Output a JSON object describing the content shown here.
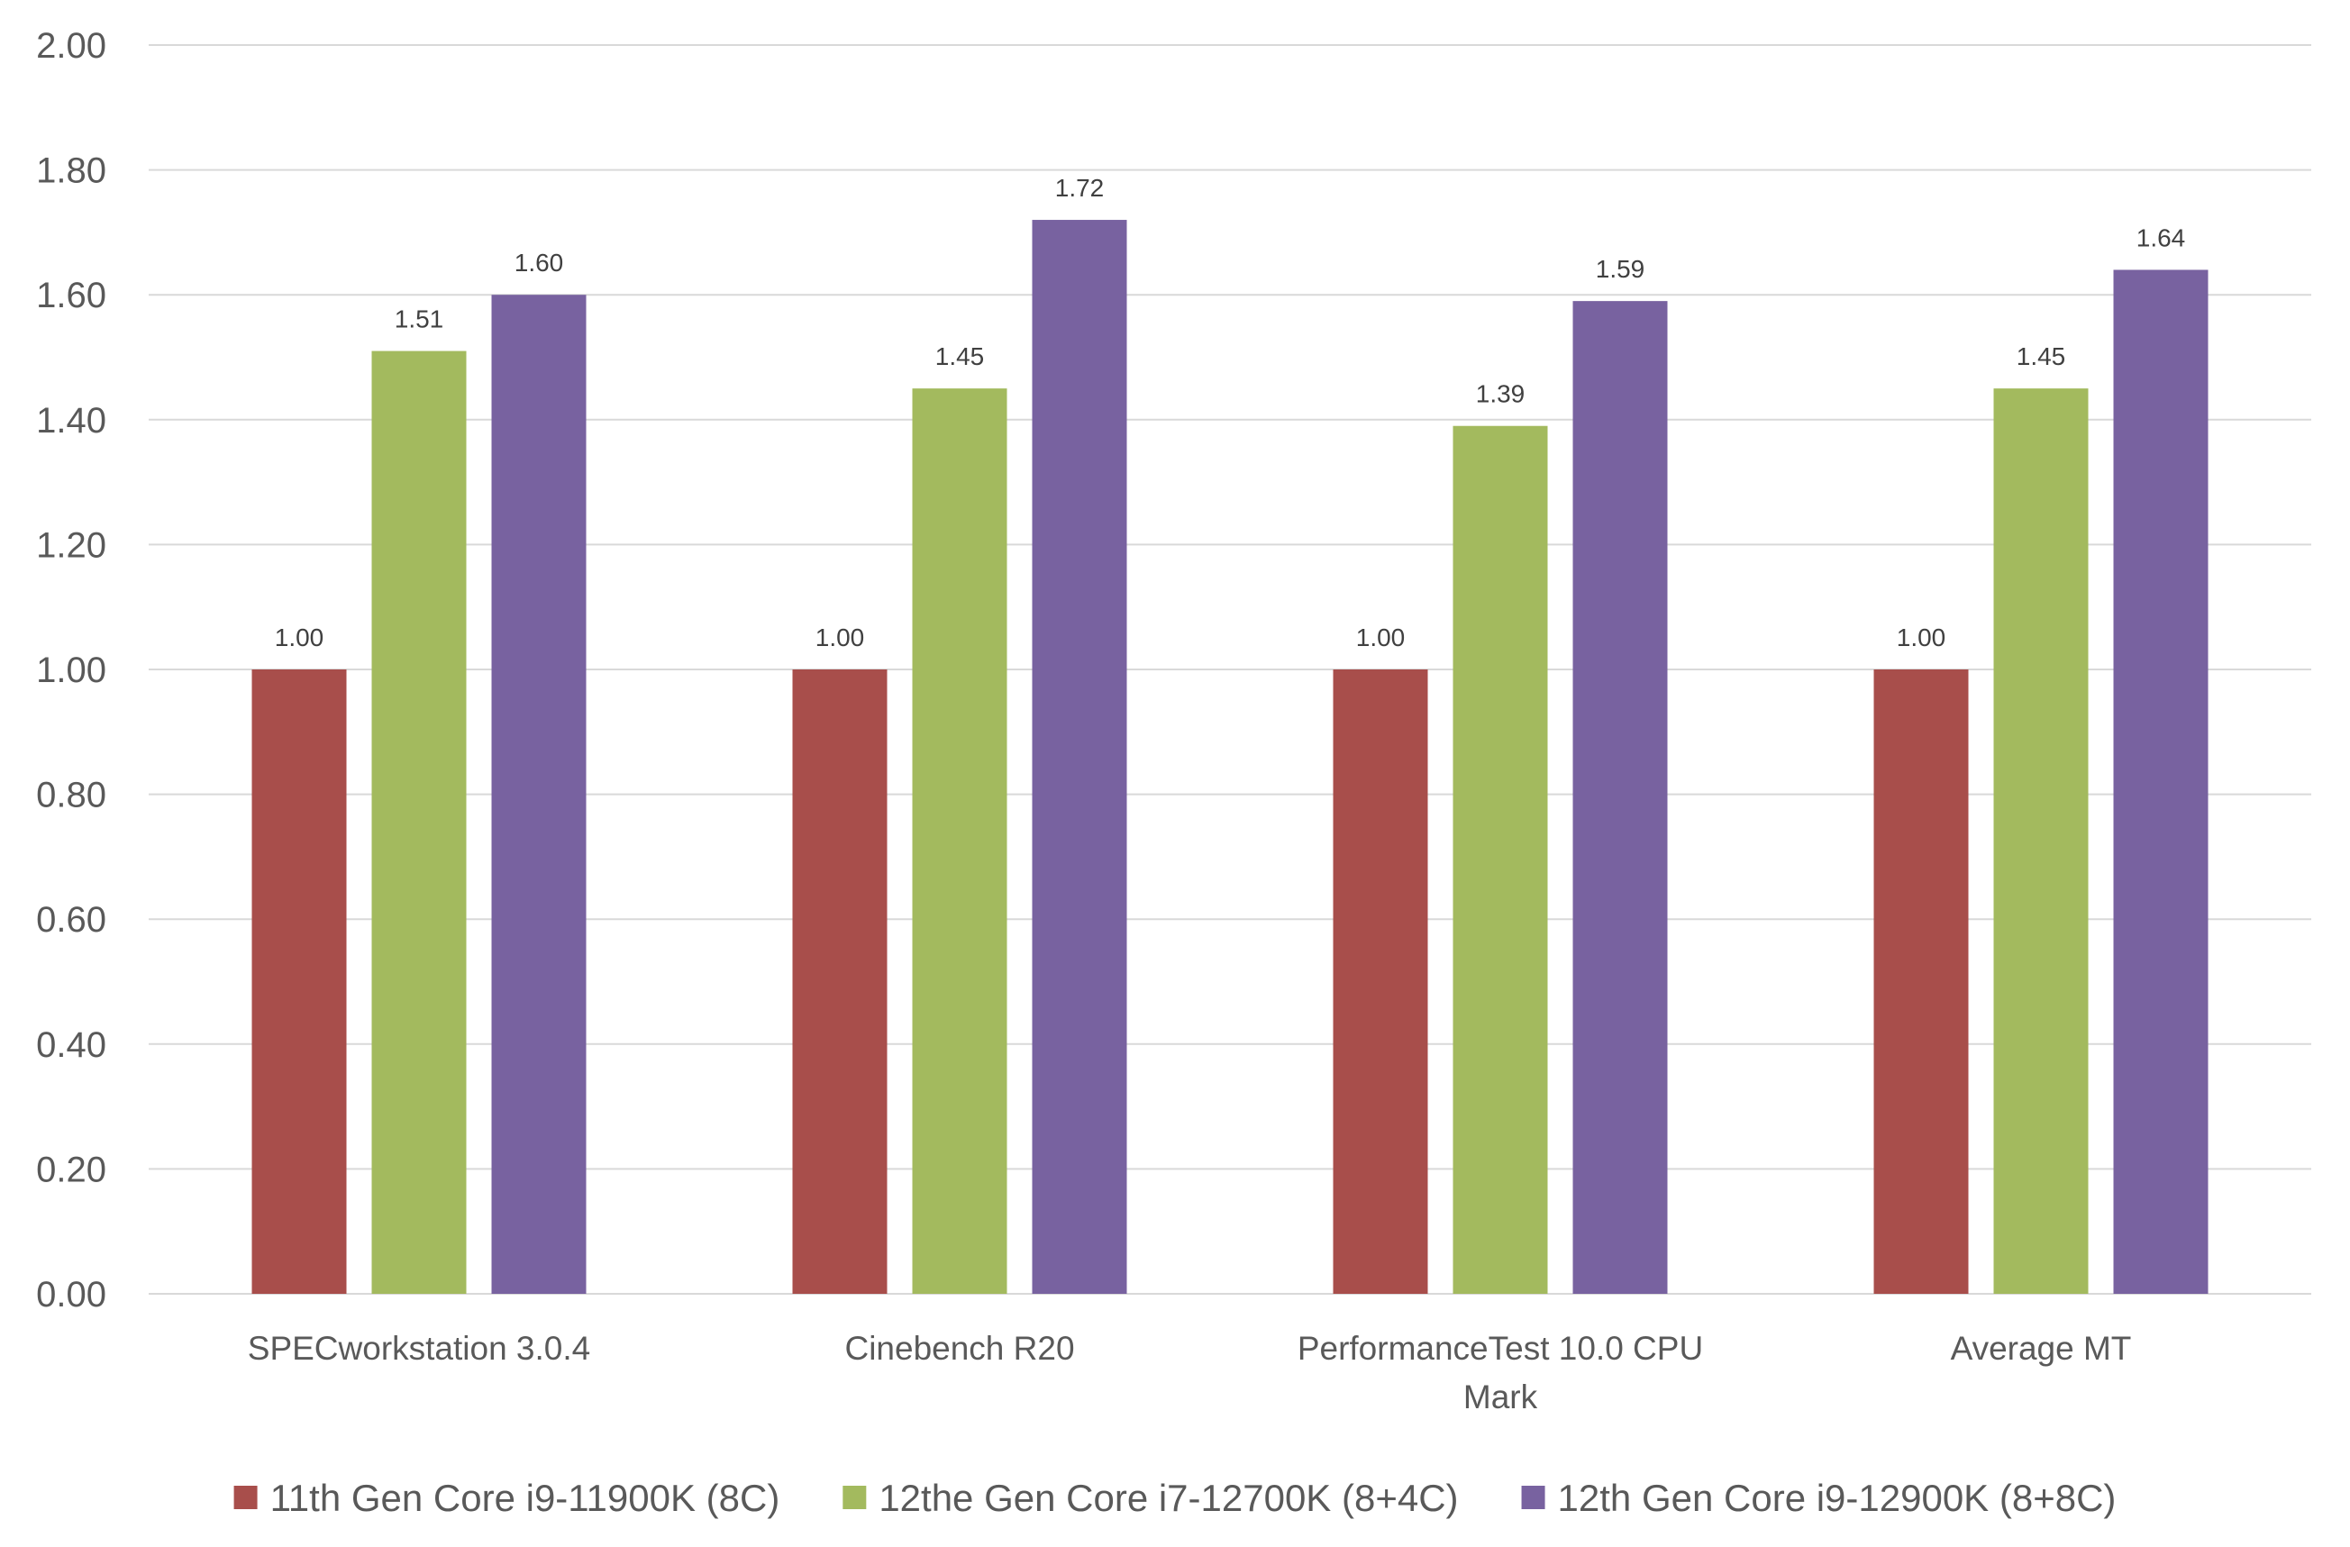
{
  "chart_data": {
    "type": "bar",
    "title": "",
    "xlabel": "",
    "ylabel": "",
    "ylim": [
      0,
      2
    ],
    "y_ticks": [
      "0.00",
      "0.20",
      "0.40",
      "0.60",
      "0.80",
      "1.00",
      "1.20",
      "1.40",
      "1.60",
      "1.80",
      "2.00"
    ],
    "grid": true,
    "legend_position": "bottom",
    "categories": [
      [
        "SPECworkstation 3.0.4"
      ],
      [
        "Cinebench R20"
      ],
      [
        "PerformanceTest 10.0 CPU",
        "Mark"
      ],
      [
        "Average MT"
      ]
    ],
    "series": [
      {
        "name": "11th Gen Core i9-11900K (8C)",
        "color": "#a84e4b",
        "values": [
          1.0,
          1.0,
          1.0,
          1.0
        ],
        "labels": [
          "1.00",
          "1.00",
          "1.00",
          "1.00"
        ]
      },
      {
        "name": "12the Gen Core i7-12700K (8+4C)",
        "color": "#a3ba5e",
        "values": [
          1.51,
          1.45,
          1.39,
          1.45
        ],
        "labels": [
          "1.51",
          "1.45",
          "1.39",
          "1.45"
        ]
      },
      {
        "name": "12th Gen Core i9-12900K (8+8C)",
        "color": "#7862a0",
        "values": [
          1.6,
          1.72,
          1.59,
          1.64
        ],
        "labels": [
          "1.60",
          "1.72",
          "1.59",
          "1.64"
        ]
      }
    ]
  }
}
